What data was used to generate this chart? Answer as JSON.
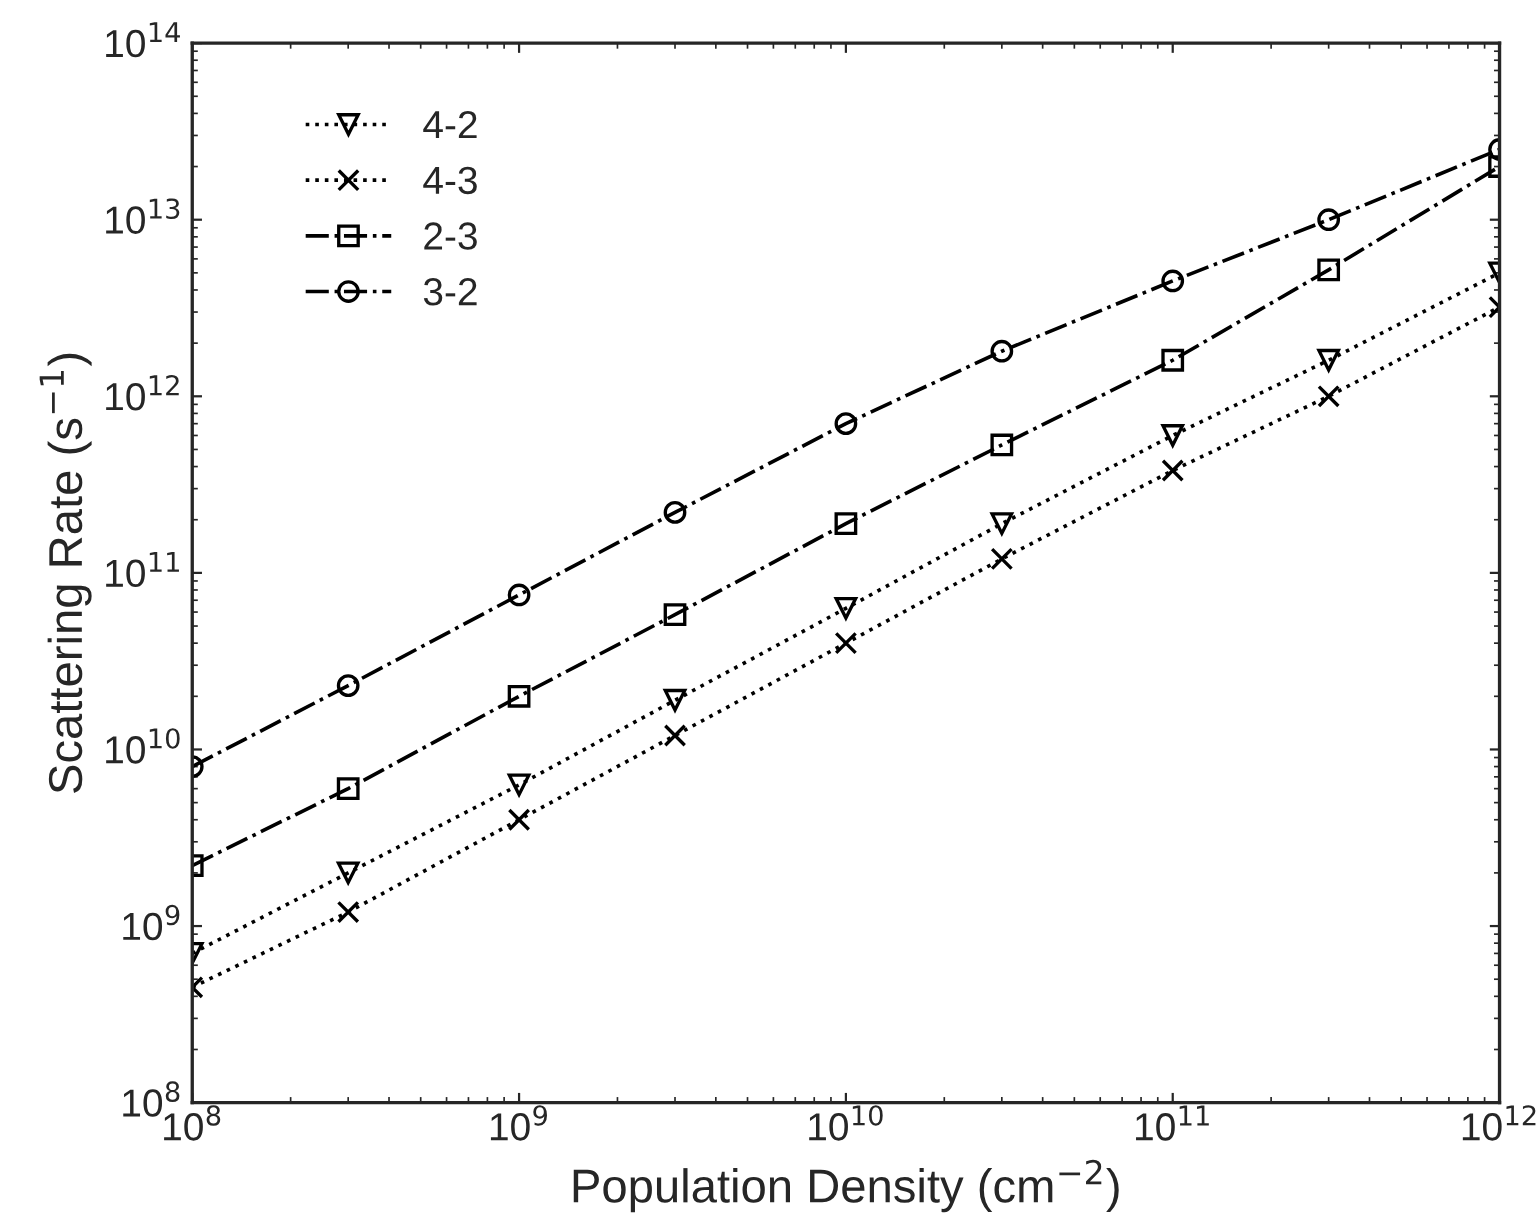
{
  "chart_data": {
    "type": "line",
    "xlabel": "Population Density (cm$^{−2}$)",
    "ylabel": "Scattering Rate (s$^{−1}$)",
    "x": [
      100000000.0,
      300000000.0,
      1000000000.0,
      3000000000.0,
      10000000000.0,
      30000000000.0,
      100000000000.0,
      300000000000.0,
      1000000000000.0
    ],
    "series": [
      {
        "name": "4-2",
        "color": "#000000",
        "marker": "triangle",
        "line_style": "dotted",
        "values": [
          700000000.0,
          2000000000.0,
          6300000000.0,
          19000000000.0,
          63000000000.0,
          190000000000.0,
          600000000000.0,
          1600000000000.0,
          5000000000000.0
        ]
      },
      {
        "name": "4-3",
        "color": "#000000",
        "marker": "cross",
        "line_style": "dotted",
        "values": [
          450000000.0,
          1200000000.0,
          4000000000.0,
          12000000000.0,
          40000000000.0,
          120000000000.0,
          380000000000.0,
          1000000000000.0,
          3200000000000.0
        ]
      },
      {
        "name": "2-3",
        "color": "#000000",
        "marker": "square",
        "line_style": "dashdot",
        "values": [
          2200000000.0,
          6000000000.0,
          20000000000.0,
          58000000000.0,
          190000000000.0,
          530000000000.0,
          1600000000000.0,
          5200000000000.0,
          20000000000000.0
        ]
      },
      {
        "name": "3-2",
        "color": "#000000",
        "marker": "circle",
        "line_style": "dashdot",
        "values": [
          8000000000.0,
          23000000000.0,
          75000000000.0,
          220000000000.0,
          700000000000.0,
          1800000000000.0,
          4500000000000.0,
          10000000000000.0,
          25000000000000.0
        ]
      }
    ],
    "log": "xy",
    "xlim": [
      100000000.0,
      1000000000000.0
    ],
    "ylim": [
      100000000.0,
      100000000000000.0
    ],
    "xticks": [
      {
        "value": 100000000.0,
        "label": "10$^{8}$"
      },
      {
        "value": 1000000000.0,
        "label": "10$^{9}$"
      },
      {
        "value": 10000000000.0,
        "label": "10$^{10}$"
      },
      {
        "value": 100000000000.0,
        "label": "10$^{11}$"
      },
      {
        "value": 1000000000000.0,
        "label": "10$^{12}$"
      }
    ],
    "yticks": [
      {
        "value": 100000000.0,
        "label": "10$^{8}$"
      },
      {
        "value": 1000000000.0,
        "label": "10$^{9}$"
      },
      {
        "value": 10000000000.0,
        "label": "10$^{10}$"
      },
      {
        "value": 100000000000.0,
        "label": "10$^{11}$"
      },
      {
        "value": 1000000000000.0,
        "label": "10$^{12}$"
      },
      {
        "value": 10000000000000.0,
        "label": "10$^{13}$"
      },
      {
        "value": 100000000000000.0,
        "label": "10$^{14}$"
      }
    ],
    "grid": false,
    "legend": "top left"
  }
}
